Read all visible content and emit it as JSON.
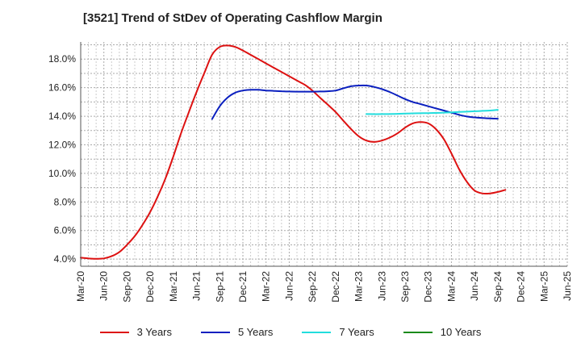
{
  "chart_data": {
    "type": "line",
    "title": "[3521]  Trend of StDev of Operating Cashflow Margin",
    "x": [
      "Mar-20",
      "Jun-20",
      "Sep-20",
      "Dec-20",
      "Mar-21",
      "Jun-21",
      "Sep-21",
      "Dec-21",
      "Mar-22",
      "Jun-22",
      "Sep-22",
      "Dec-22",
      "Mar-23",
      "Jun-23",
      "Sep-23",
      "Dec-23",
      "Mar-24",
      "Jun-24",
      "Sep-24",
      "Dec-24",
      "Mar-25",
      "Jun-25"
    ],
    "ylim": [
      3.5,
      19.2
    ],
    "yticks": [
      4.0,
      6.0,
      8.0,
      10.0,
      12.0,
      14.0,
      16.0,
      18.0
    ],
    "ytick_labels": [
      "4.0%",
      "6.0%",
      "8.0%",
      "10.0%",
      "12.0%",
      "14.0%",
      "16.0%",
      "18.0%"
    ],
    "grid": true,
    "legend_position": "bottom",
    "series": [
      {
        "name": "3 Years",
        "color": "#dd1111",
        "points": [
          [
            0,
            4.1
          ],
          [
            0.33,
            4.05
          ],
          [
            0.67,
            4.02
          ],
          [
            1,
            4.05
          ],
          [
            1.33,
            4.2
          ],
          [
            1.67,
            4.5
          ],
          [
            2,
            5.0
          ],
          [
            2.33,
            5.6
          ],
          [
            2.67,
            6.4
          ],
          [
            3,
            7.3
          ],
          [
            3.33,
            8.4
          ],
          [
            3.67,
            9.7
          ],
          [
            4,
            11.2
          ],
          [
            4.33,
            12.8
          ],
          [
            4.67,
            14.3
          ],
          [
            5,
            15.7
          ],
          [
            5.33,
            17.0
          ],
          [
            5.67,
            18.3
          ],
          [
            6,
            18.85
          ],
          [
            6.33,
            18.95
          ],
          [
            6.67,
            18.85
          ],
          [
            7,
            18.6
          ],
          [
            7.33,
            18.3
          ],
          [
            7.67,
            18.0
          ],
          [
            8,
            17.7
          ],
          [
            8.33,
            17.4
          ],
          [
            8.67,
            17.1
          ],
          [
            9,
            16.8
          ],
          [
            9.33,
            16.5
          ],
          [
            9.67,
            16.2
          ],
          [
            10,
            15.8
          ],
          [
            10.33,
            15.3
          ],
          [
            10.67,
            14.8
          ],
          [
            11,
            14.3
          ],
          [
            11.33,
            13.7
          ],
          [
            11.67,
            13.1
          ],
          [
            12,
            12.6
          ],
          [
            12.33,
            12.3
          ],
          [
            12.67,
            12.2
          ],
          [
            13,
            12.3
          ],
          [
            13.33,
            12.5
          ],
          [
            13.67,
            12.8
          ],
          [
            14,
            13.2
          ],
          [
            14.33,
            13.5
          ],
          [
            14.67,
            13.6
          ],
          [
            15,
            13.5
          ],
          [
            15.33,
            13.1
          ],
          [
            15.67,
            12.4
          ],
          [
            16,
            11.4
          ],
          [
            16.33,
            10.3
          ],
          [
            16.67,
            9.4
          ],
          [
            17,
            8.8
          ],
          [
            17.33,
            8.6
          ],
          [
            17.67,
            8.6
          ],
          [
            18,
            8.7
          ],
          [
            18.33,
            8.85
          ]
        ]
      },
      {
        "name": "5 Years",
        "color": "#0a1fbf",
        "points": [
          [
            5.67,
            13.8
          ],
          [
            6,
            14.7
          ],
          [
            6.33,
            15.3
          ],
          [
            6.67,
            15.65
          ],
          [
            7,
            15.8
          ],
          [
            7.33,
            15.85
          ],
          [
            7.67,
            15.85
          ],
          [
            8,
            15.8
          ],
          [
            8.33,
            15.78
          ],
          [
            8.67,
            15.75
          ],
          [
            9,
            15.73
          ],
          [
            9.33,
            15.72
          ],
          [
            9.67,
            15.72
          ],
          [
            10,
            15.72
          ],
          [
            10.33,
            15.73
          ],
          [
            10.67,
            15.75
          ],
          [
            11,
            15.8
          ],
          [
            11.33,
            15.95
          ],
          [
            11.67,
            16.1
          ],
          [
            12,
            16.15
          ],
          [
            12.33,
            16.15
          ],
          [
            12.67,
            16.05
          ],
          [
            13,
            15.9
          ],
          [
            13.33,
            15.7
          ],
          [
            13.67,
            15.45
          ],
          [
            14,
            15.2
          ],
          [
            14.33,
            15.0
          ],
          [
            14.67,
            14.85
          ],
          [
            15,
            14.7
          ],
          [
            15.33,
            14.55
          ],
          [
            15.67,
            14.4
          ],
          [
            16,
            14.25
          ],
          [
            16.33,
            14.1
          ],
          [
            16.67,
            13.98
          ],
          [
            17,
            13.92
          ],
          [
            17.33,
            13.88
          ],
          [
            17.67,
            13.85
          ],
          [
            18,
            13.83
          ]
        ]
      },
      {
        "name": "7 Years",
        "color": "#22dddd",
        "points": [
          [
            12.33,
            14.15
          ],
          [
            13,
            14.15
          ],
          [
            13.67,
            14.17
          ],
          [
            14.33,
            14.2
          ],
          [
            15,
            14.22
          ],
          [
            15.67,
            14.25
          ],
          [
            16.33,
            14.3
          ],
          [
            17,
            14.35
          ],
          [
            17.67,
            14.4
          ],
          [
            18,
            14.45
          ]
        ]
      },
      {
        "name": "10 Years",
        "color": "#1a8a1a",
        "points": []
      }
    ]
  }
}
